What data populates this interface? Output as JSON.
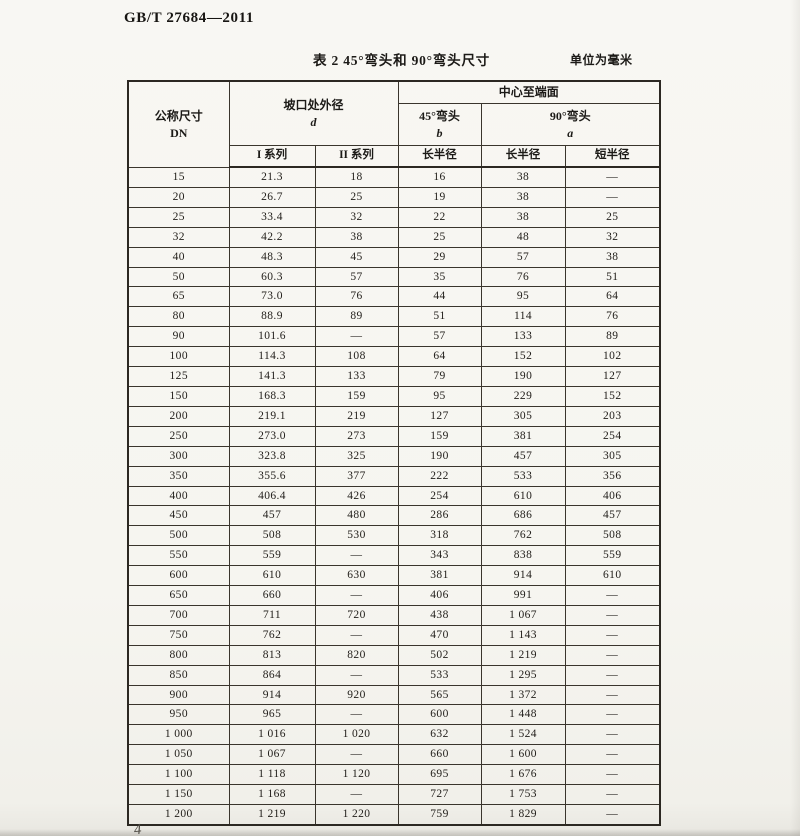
{
  "page": {
    "doc_number": "GB/T 27684—2011",
    "page_number": "4"
  },
  "caption": {
    "title": "表 2  45°弯头和 90°弯头尺寸",
    "unit_note": "单位为毫米"
  },
  "table": {
    "header": {
      "dn_label": "公称尺寸",
      "dn_symbol": "DN",
      "od_label": "坡口处外径",
      "od_symbol": "d",
      "center_to_face_label": "中心至端面",
      "elbow45_label": "45°弯头",
      "elbow45_symbol": "b",
      "elbow90_label": "90°弯头",
      "elbow90_symbol": "a",
      "series1_label": "I 系列",
      "series2_label": "II 系列",
      "long_radius_45_label": "长半径",
      "long_radius_90_label": "长半径",
      "short_radius_90_label": "短半径"
    },
    "columns": [
      "公称尺寸 DN",
      "坡口处外径 d — I 系列",
      "坡口处外径 d — II 系列",
      "45°弯头 b 长半径",
      "90°弯头 a 长半径",
      "90°弯头 a 短半径"
    ],
    "rows": [
      [
        "15",
        "21.3",
        "18",
        "16",
        "38",
        "—"
      ],
      [
        "20",
        "26.7",
        "25",
        "19",
        "38",
        "—"
      ],
      [
        "25",
        "33.4",
        "32",
        "22",
        "38",
        "25"
      ],
      [
        "32",
        "42.2",
        "38",
        "25",
        "48",
        "32"
      ],
      [
        "40",
        "48.3",
        "45",
        "29",
        "57",
        "38"
      ],
      [
        "50",
        "60.3",
        "57",
        "35",
        "76",
        "51"
      ],
      [
        "65",
        "73.0",
        "76",
        "44",
        "95",
        "64"
      ],
      [
        "80",
        "88.9",
        "89",
        "51",
        "114",
        "76"
      ],
      [
        "90",
        "101.6",
        "—",
        "57",
        "133",
        "89"
      ],
      [
        "100",
        "114.3",
        "108",
        "64",
        "152",
        "102"
      ],
      [
        "125",
        "141.3",
        "133",
        "79",
        "190",
        "127"
      ],
      [
        "150",
        "168.3",
        "159",
        "95",
        "229",
        "152"
      ],
      [
        "200",
        "219.1",
        "219",
        "127",
        "305",
        "203"
      ],
      [
        "250",
        "273.0",
        "273",
        "159",
        "381",
        "254"
      ],
      [
        "300",
        "323.8",
        "325",
        "190",
        "457",
        "305"
      ],
      [
        "350",
        "355.6",
        "377",
        "222",
        "533",
        "356"
      ],
      [
        "400",
        "406.4",
        "426",
        "254",
        "610",
        "406"
      ],
      [
        "450",
        "457",
        "480",
        "286",
        "686",
        "457"
      ],
      [
        "500",
        "508",
        "530",
        "318",
        "762",
        "508"
      ],
      [
        "550",
        "559",
        "—",
        "343",
        "838",
        "559"
      ],
      [
        "600",
        "610",
        "630",
        "381",
        "914",
        "610"
      ],
      [
        "650",
        "660",
        "—",
        "406",
        "991",
        "—"
      ],
      [
        "700",
        "711",
        "720",
        "438",
        "1 067",
        "—"
      ],
      [
        "750",
        "762",
        "—",
        "470",
        "1 143",
        "—"
      ],
      [
        "800",
        "813",
        "820",
        "502",
        "1 219",
        "—"
      ],
      [
        "850",
        "864",
        "—",
        "533",
        "1 295",
        "—"
      ],
      [
        "900",
        "914",
        "920",
        "565",
        "1 372",
        "—"
      ],
      [
        "950",
        "965",
        "—",
        "600",
        "1 448",
        "—"
      ],
      [
        "1 000",
        "1 016",
        "1 020",
        "632",
        "1 524",
        "—"
      ],
      [
        "1 050",
        "1 067",
        "—",
        "660",
        "1 600",
        "—"
      ],
      [
        "1 100",
        "1 118",
        "1 120",
        "695",
        "1 676",
        "—"
      ],
      [
        "1 150",
        "1 168",
        "—",
        "727",
        "1 753",
        "—"
      ],
      [
        "1 200",
        "1 219",
        "1 220",
        "759",
        "1 829",
        "—"
      ]
    ]
  }
}
